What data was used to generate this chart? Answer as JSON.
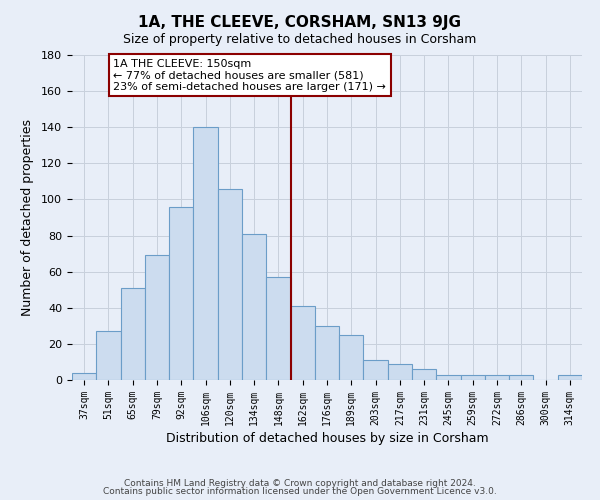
{
  "title": "1A, THE CLEEVE, CORSHAM, SN13 9JG",
  "subtitle": "Size of property relative to detached houses in Corsham",
  "xlabel": "Distribution of detached houses by size in Corsham",
  "ylabel": "Number of detached properties",
  "bar_labels": [
    "37sqm",
    "51sqm",
    "65sqm",
    "79sqm",
    "92sqm",
    "106sqm",
    "120sqm",
    "134sqm",
    "148sqm",
    "162sqm",
    "176sqm",
    "189sqm",
    "203sqm",
    "217sqm",
    "231sqm",
    "245sqm",
    "259sqm",
    "272sqm",
    "286sqm",
    "300sqm",
    "314sqm"
  ],
  "bar_values": [
    4,
    27,
    51,
    69,
    96,
    140,
    106,
    81,
    57,
    41,
    30,
    25,
    11,
    9,
    6,
    3,
    3,
    3,
    3,
    0,
    3
  ],
  "bar_color": "#ccdcef",
  "bar_edge_color": "#6b9dc8",
  "vline_x": 8.5,
  "vline_color": "#8b0000",
  "annotation_title": "1A THE CLEEVE: 150sqm",
  "annotation_line1": "← 77% of detached houses are smaller (581)",
  "annotation_line2": "23% of semi-detached houses are larger (171) →",
  "annotation_box_color": "#ffffff",
  "annotation_box_edge_color": "#8b0000",
  "ylim": [
    0,
    180
  ],
  "yticks": [
    0,
    20,
    40,
    60,
    80,
    100,
    120,
    140,
    160,
    180
  ],
  "footer_line1": "Contains HM Land Registry data © Crown copyright and database right 2024.",
  "footer_line2": "Contains public sector information licensed under the Open Government Licence v3.0.",
  "background_color": "#e8eef8",
  "grid_color": "#c8d0dc"
}
